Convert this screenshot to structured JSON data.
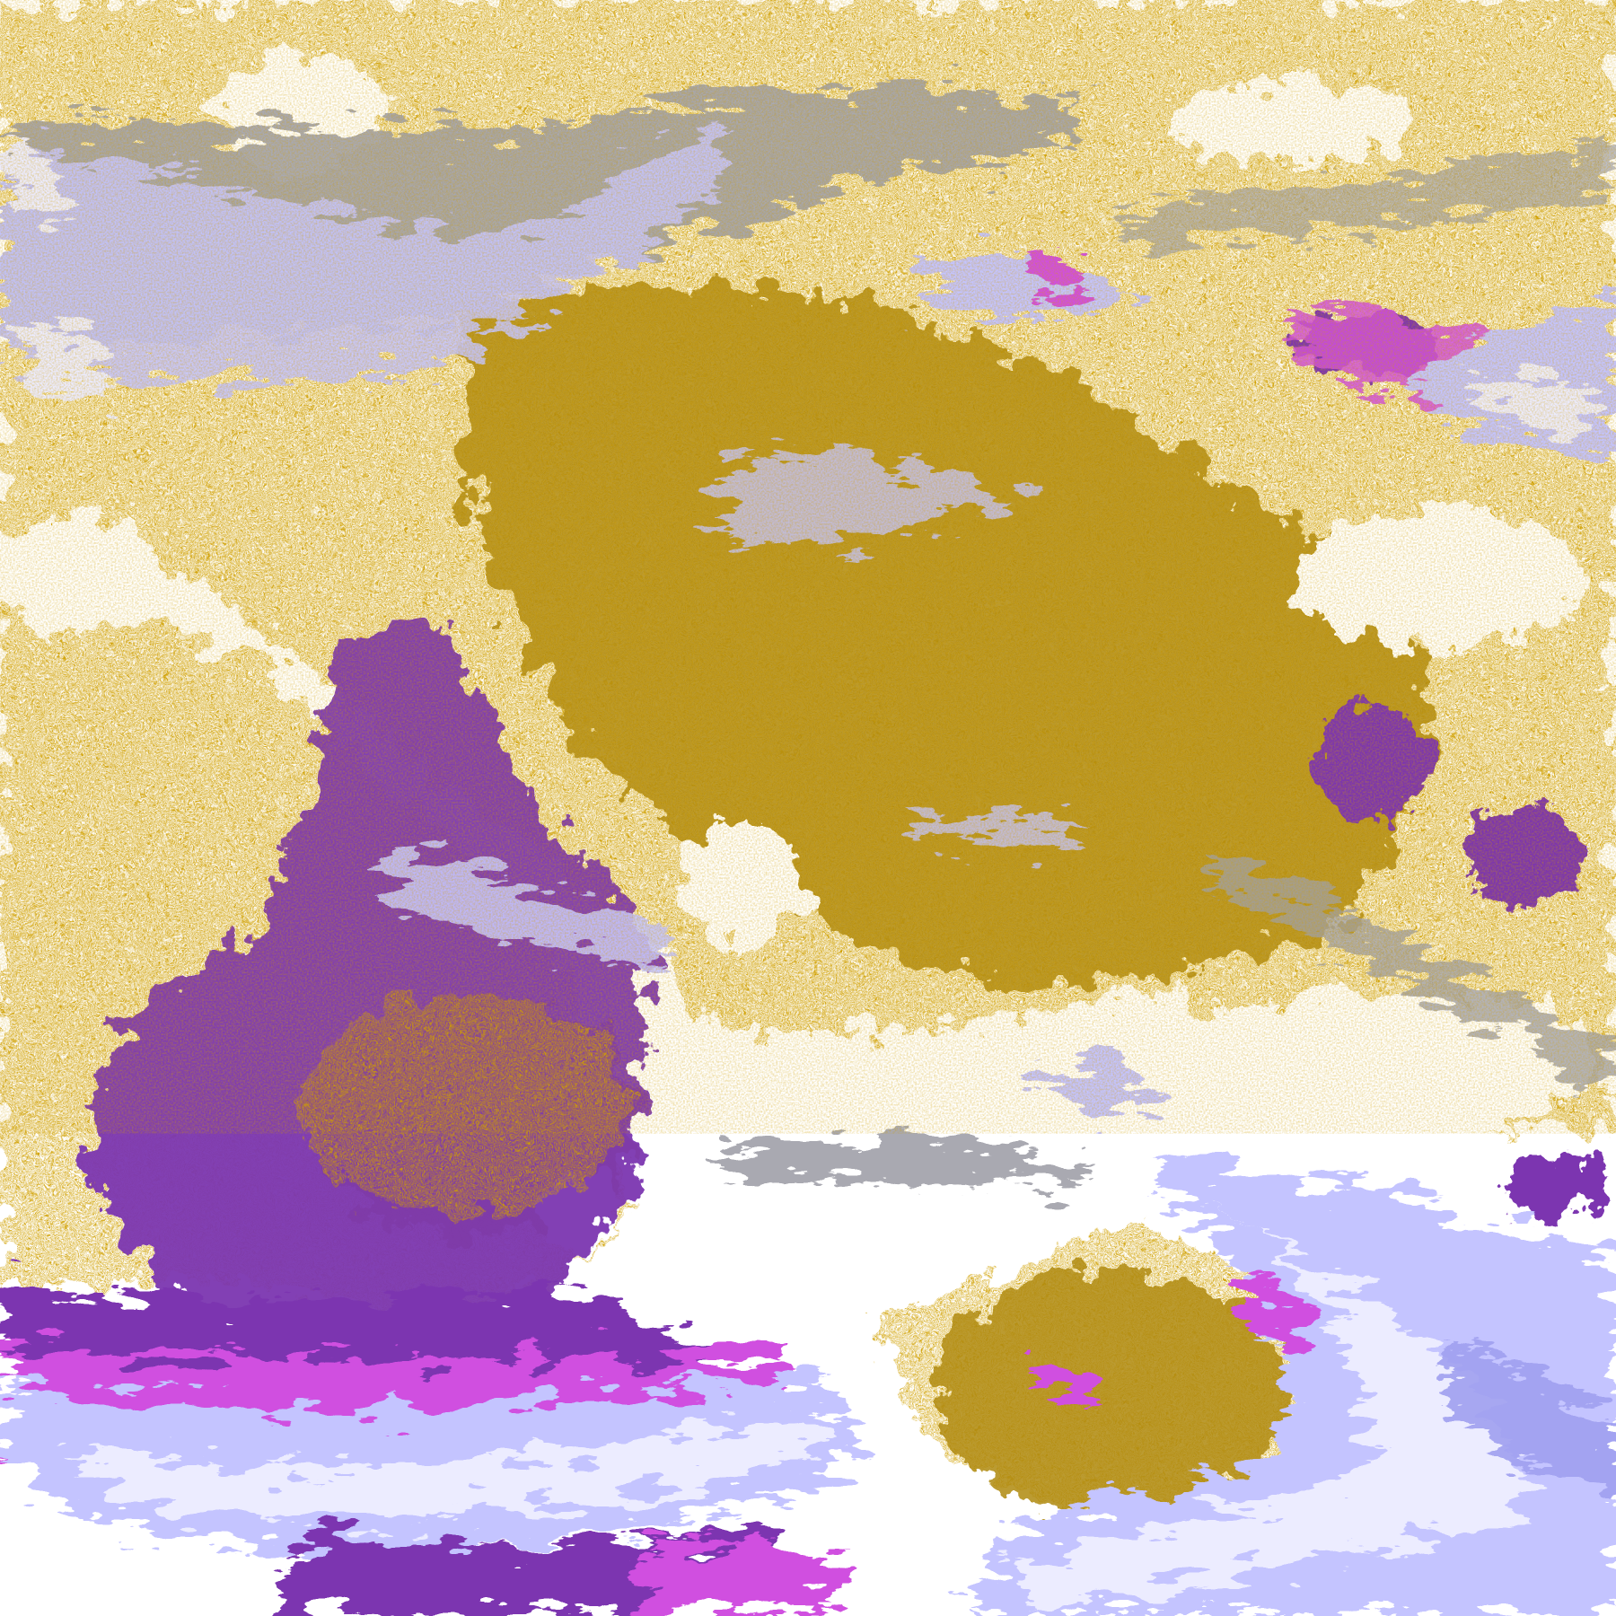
{
  "image": {
    "kind": "false-color satellite imagery",
    "palette": {
      "background": "#ffffff",
      "gold": "#d0a000",
      "dark_gold": "#b08a10",
      "purple": "#7b35b0",
      "magenta": "#d050e0",
      "lavender": "#c4c4ff",
      "pale_lavender": "#ececff",
      "periwinkle": "#a0a0f0",
      "gray": "#a0a0a8"
    }
  }
}
